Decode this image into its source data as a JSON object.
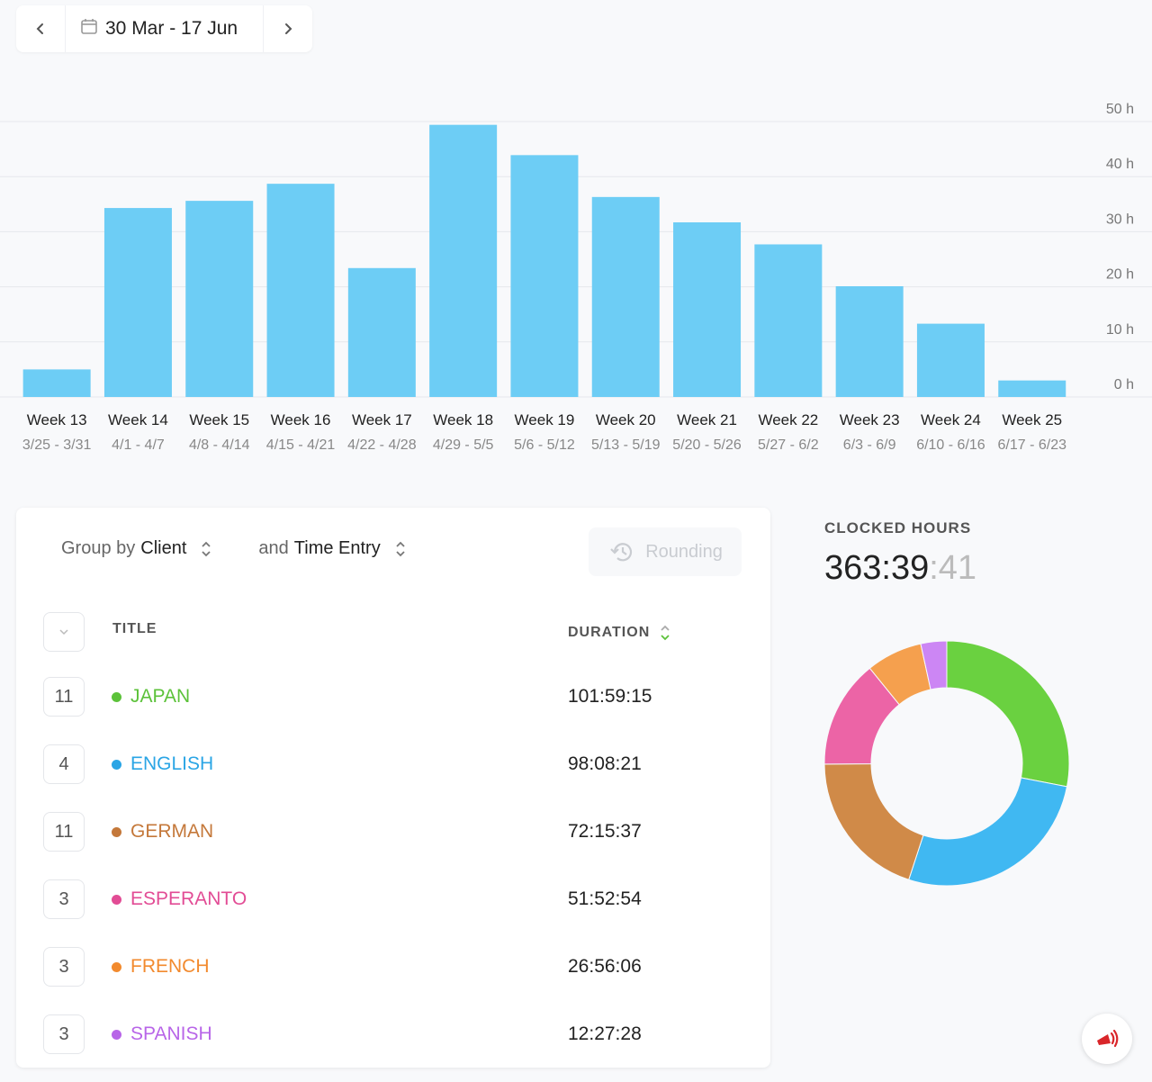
{
  "date_nav": {
    "prev_icon": "chevron-left-icon",
    "next_icon": "chevron-right-icon",
    "calendar_icon": "calendar-icon",
    "range": "30 Mar - 17 Jun"
  },
  "chart_data": {
    "type": "bar",
    "categories": [
      "Week 13",
      "Week 14",
      "Week 15",
      "Week 16",
      "Week 17",
      "Week 18",
      "Week 19",
      "Week 20",
      "Week 21",
      "Week 22",
      "Week 23",
      "Week 24",
      "Week 25"
    ],
    "subcategories": [
      "3/25 - 3/31",
      "4/1 - 4/7",
      "4/8 - 4/14",
      "4/15 - 4/21",
      "4/22 - 4/28",
      "4/29 - 5/5",
      "5/6 - 5/12",
      "5/13 - 5/19",
      "5/20 - 5/26",
      "5/27 - 6/2",
      "6/3 - 6/9",
      "6/10 - 6/16",
      "6/17 - 6/23"
    ],
    "values": [
      5,
      34.3,
      35.6,
      38.7,
      23.4,
      49.4,
      43.9,
      36.3,
      31.7,
      27.7,
      20.1,
      13.3,
      3
    ],
    "ylim": [
      0,
      50
    ],
    "yticks": [
      "0 h",
      "10 h",
      "20 h",
      "30 h",
      "40 h",
      "50 h"
    ],
    "ytick_values": [
      0,
      10,
      20,
      30,
      40,
      50
    ],
    "bar_color": "#6dcdf5",
    "grid": true,
    "axis_position": "right"
  },
  "group_by": {
    "prefix": "Group by",
    "value": "Client",
    "and_prefix": "and",
    "and_value": "Time Entry",
    "rounding_label": "Rounding",
    "rounding_icon": "history-icon"
  },
  "table": {
    "title_header": "TITLE",
    "duration_header": "DURATION",
    "rows": [
      {
        "count": "11",
        "title": "JAPAN",
        "duration": "101:59:15",
        "color": "#5cc23a"
      },
      {
        "count": "4",
        "title": "ENGLISH",
        "duration": "98:08:21",
        "color": "#2aa5e5"
      },
      {
        "count": "11",
        "title": "GERMAN",
        "duration": "72:15:37",
        "color": "#c4783a"
      },
      {
        "count": "3",
        "title": "ESPERANTO",
        "duration": "51:52:54",
        "color": "#e24c95"
      },
      {
        "count": "3",
        "title": "FRENCH",
        "duration": "26:56:06",
        "color": "#f28a2e"
      },
      {
        "count": "3",
        "title": "SPANISH",
        "duration": "12:27:28",
        "color": "#b865e8"
      }
    ]
  },
  "clocked": {
    "label": "CLOCKED HOURS",
    "hours_minutes": "363:39",
    "seconds": ":41"
  },
  "donut_colors": [
    "#6ad140",
    "#40b8f2",
    "#d08a48",
    "#ec64a6",
    "#f5a04e",
    "#cc86f4"
  ],
  "fab_icon": "megaphone-icon"
}
